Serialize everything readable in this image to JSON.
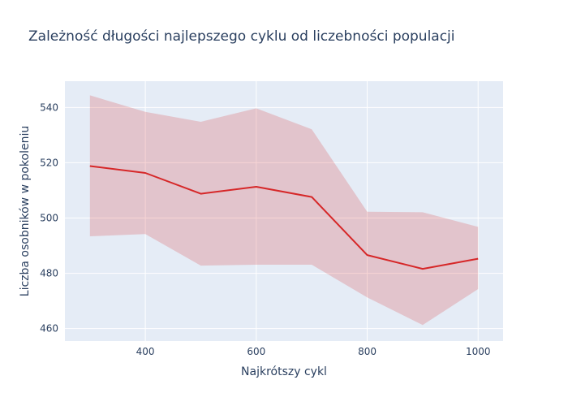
{
  "chart_data": {
    "type": "line",
    "title": "Zależność długości najlepszego cyklu od liczebności populacji",
    "xlabel": "Najkrótszy cykl",
    "ylabel": "Liczba osobników w pokoleniu",
    "xlim": [
      255,
      1045
    ],
    "ylim": [
      455.5,
      549.5
    ],
    "x_ticks": [
      400,
      600,
      800,
      1000
    ],
    "y_ticks": [
      460,
      480,
      500,
      520,
      540
    ],
    "grid": true,
    "legend": "none",
    "colors": {
      "line": "#d62728",
      "band": "#d62728",
      "plot_bg": "#e5ecf6",
      "grid": "#ffffff",
      "text": "#2a3f5f"
    },
    "x": [
      300,
      400,
      500,
      600,
      700,
      800,
      900,
      1000
    ],
    "series": [
      {
        "values": [
          518.8,
          516.3,
          508.8,
          511.3,
          507.6,
          486.6,
          481.6,
          485.3
        ]
      }
    ],
    "band_upper": [
      544.4,
      538.4,
      534.8,
      539.7,
      532.1,
      502.3,
      502.1,
      496.8
    ],
    "band_lower": [
      493.4,
      494.2,
      482.8,
      483.1,
      483.1,
      471.3,
      461.3,
      474.3
    ]
  }
}
